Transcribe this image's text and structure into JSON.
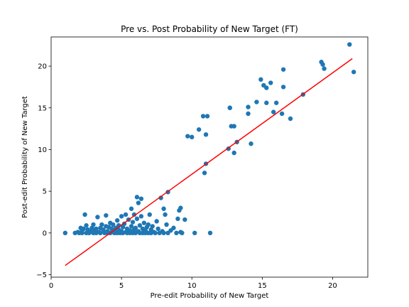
{
  "chart_data": {
    "type": "scatter",
    "title": "Pre vs. Post Probability of New Target (FT)",
    "xlabel": "Pre-edit Probability of New Target",
    "ylabel": "Post-edit Probability of New Target",
    "xlim": [
      0,
      22.5
    ],
    "ylim": [
      -5.3,
      23.5
    ],
    "xticks": [
      0,
      5,
      10,
      15,
      20
    ],
    "yticks": [
      -5,
      0,
      5,
      10,
      15,
      20
    ],
    "grid": false,
    "colors": {
      "points": "#1f77b4",
      "fit_line": "#ff0000"
    },
    "fit_line": {
      "x": [
        1.0,
        21.4
      ],
      "y": [
        -3.9,
        20.9
      ]
    },
    "points": [
      [
        1.0,
        0.0
      ],
      [
        1.7,
        0.0
      ],
      [
        1.9,
        0.1
      ],
      [
        2.0,
        0.0
      ],
      [
        2.1,
        0.6
      ],
      [
        2.2,
        0.3
      ],
      [
        2.2,
        0.0
      ],
      [
        2.3,
        0.5
      ],
      [
        2.4,
        2.2
      ],
      [
        2.5,
        0.0
      ],
      [
        2.5,
        0.9
      ],
      [
        2.6,
        0.4
      ],
      [
        2.7,
        0.0
      ],
      [
        2.8,
        0.2
      ],
      [
        2.9,
        0.6
      ],
      [
        3.0,
        0.0
      ],
      [
        3.0,
        1.0
      ],
      [
        3.1,
        0.3
      ],
      [
        3.2,
        0.0
      ],
      [
        3.2,
        0.5
      ],
      [
        3.3,
        1.9
      ],
      [
        3.4,
        0.1
      ],
      [
        3.5,
        0.6
      ],
      [
        3.5,
        0.0
      ],
      [
        3.6,
        1.0
      ],
      [
        3.7,
        0.4
      ],
      [
        3.8,
        0.0
      ],
      [
        3.9,
        0.8
      ],
      [
        3.9,
        2.1
      ],
      [
        4.0,
        0.2
      ],
      [
        4.0,
        0.0
      ],
      [
        4.1,
        0.7
      ],
      [
        4.2,
        1.2
      ],
      [
        4.2,
        0.0
      ],
      [
        4.3,
        0.5
      ],
      [
        4.3,
        0.1
      ],
      [
        4.4,
        1.0
      ],
      [
        4.5,
        0.3
      ],
      [
        4.5,
        0.0
      ],
      [
        4.6,
        0.6
      ],
      [
        4.7,
        0.0
      ],
      [
        4.7,
        1.5
      ],
      [
        4.8,
        0.4
      ],
      [
        4.8,
        0.9
      ],
      [
        4.9,
        0.0
      ],
      [
        5.0,
        2.0
      ],
      [
        5.0,
        0.2
      ],
      [
        5.1,
        0.7
      ],
      [
        5.1,
        0.0
      ],
      [
        5.2,
        1.1
      ],
      [
        5.3,
        0.1
      ],
      [
        5.3,
        2.2
      ],
      [
        5.4,
        0.5
      ],
      [
        5.4,
        0.0
      ],
      [
        5.5,
        1.6
      ],
      [
        5.6,
        0.3
      ],
      [
        5.6,
        0.0
      ],
      [
        5.7,
        0.8
      ],
      [
        5.7,
        2.9
      ],
      [
        5.8,
        0.0
      ],
      [
        5.8,
        1.3
      ],
      [
        5.9,
        0.4
      ],
      [
        5.9,
        2.2
      ],
      [
        6.0,
        0.0
      ],
      [
        6.0,
        0.6
      ],
      [
        6.1,
        1.7
      ],
      [
        6.1,
        4.3
      ],
      [
        6.2,
        0.2
      ],
      [
        6.2,
        3.6
      ],
      [
        6.3,
        0.0
      ],
      [
        6.3,
        0.9
      ],
      [
        6.4,
        4.1
      ],
      [
        6.4,
        2.0
      ],
      [
        6.5,
        0.5
      ],
      [
        6.5,
        0.0
      ],
      [
        6.6,
        1.2
      ],
      [
        6.7,
        0.3
      ],
      [
        6.7,
        0.0
      ],
      [
        6.8,
        0.7
      ],
      [
        6.9,
        1.0
      ],
      [
        6.9,
        0.0
      ],
      [
        7.0,
        2.2
      ],
      [
        7.1,
        0.4
      ],
      [
        7.1,
        0.0
      ],
      [
        7.2,
        0.8
      ],
      [
        7.3,
        0.1
      ],
      [
        7.4,
        0.0
      ],
      [
        7.5,
        1.4
      ],
      [
        7.6,
        0.5
      ],
      [
        7.7,
        0.0
      ],
      [
        7.8,
        4.2
      ],
      [
        7.9,
        0.2
      ],
      [
        8.0,
        0.0
      ],
      [
        8.0,
        2.9
      ],
      [
        8.1,
        2.2
      ],
      [
        8.2,
        1.0
      ],
      [
        8.3,
        4.9
      ],
      [
        8.3,
        0.0
      ],
      [
        8.5,
        0.3
      ],
      [
        8.7,
        0.6
      ],
      [
        8.9,
        0.0
      ],
      [
        9.0,
        1.7
      ],
      [
        9.1,
        2.7
      ],
      [
        9.2,
        0.1
      ],
      [
        9.2,
        3.0
      ],
      [
        9.3,
        0.0
      ],
      [
        9.5,
        1.6
      ],
      [
        9.7,
        11.6
      ],
      [
        10.0,
        11.5
      ],
      [
        10.2,
        0.0
      ],
      [
        10.5,
        12.4
      ],
      [
        10.8,
        14.0
      ],
      [
        10.9,
        7.2
      ],
      [
        11.0,
        8.3
      ],
      [
        11.0,
        11.8
      ],
      [
        11.1,
        14.0
      ],
      [
        11.3,
        0.0
      ],
      [
        12.6,
        10.1
      ],
      [
        12.7,
        15.0
      ],
      [
        12.7,
        15.0
      ],
      [
        12.8,
        12.8
      ],
      [
        13.0,
        12.8
      ],
      [
        13.0,
        9.6
      ],
      [
        13.2,
        10.9
      ],
      [
        14.0,
        14.3
      ],
      [
        14.0,
        15.1
      ],
      [
        14.2,
        10.7
      ],
      [
        14.6,
        15.7
      ],
      [
        14.9,
        18.4
      ],
      [
        15.1,
        17.7
      ],
      [
        15.3,
        17.4
      ],
      [
        15.3,
        15.6
      ],
      [
        15.6,
        18.0
      ],
      [
        15.8,
        14.5
      ],
      [
        16.0,
        15.6
      ],
      [
        16.4,
        14.3
      ],
      [
        16.5,
        19.6
      ],
      [
        16.5,
        17.5
      ],
      [
        17.0,
        13.7
      ],
      [
        17.9,
        16.6
      ],
      [
        19.2,
        20.5
      ],
      [
        19.3,
        20.2
      ],
      [
        19.4,
        19.7
      ],
      [
        21.2,
        22.6
      ],
      [
        21.5,
        19.3
      ]
    ]
  }
}
